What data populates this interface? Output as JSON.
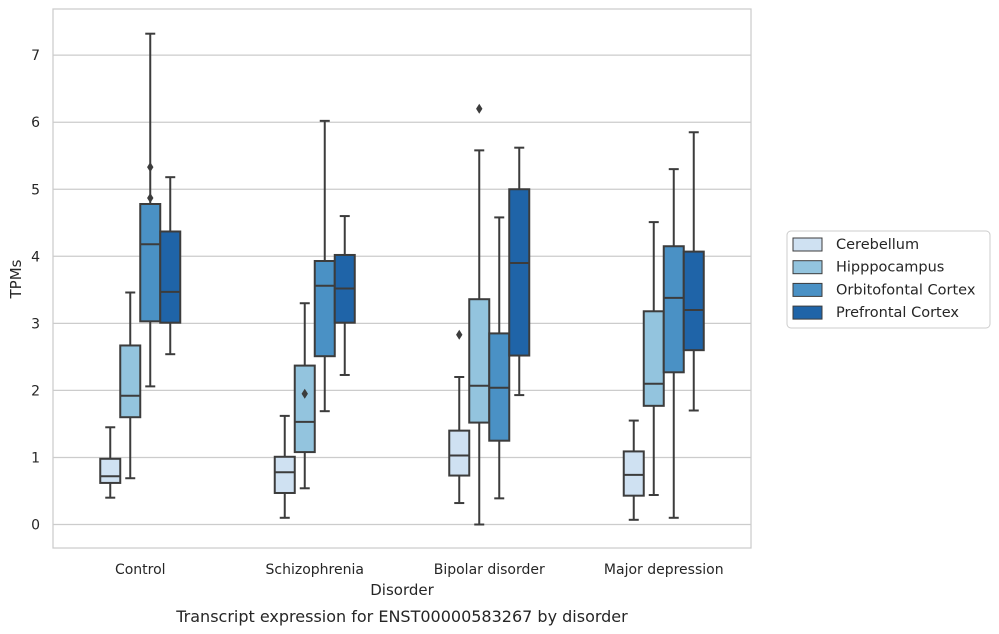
{
  "caption": "Transcript expression for ENST00000583267 by disorder",
  "chart_data": {
    "type": "boxplot",
    "xlabel": "Disorder",
    "ylabel": "TPMs",
    "ylim": [
      -0.35,
      7.7
    ],
    "yticks": [
      0,
      1,
      2,
      3,
      4,
      5,
      6,
      7
    ],
    "grid": "horizontal",
    "legend_position": "right",
    "categories": [
      "Control",
      "Schizophrenia",
      "Bipolar disorder",
      "Major depression"
    ],
    "series": [
      {
        "name": "Cerebellum",
        "color": "#cfe1f2",
        "boxes": [
          {
            "whislo": 0.4,
            "q1": 0.62,
            "med": 0.72,
            "q3": 0.98,
            "whishi": 1.45,
            "fliers": []
          },
          {
            "whislo": 0.1,
            "q1": 0.47,
            "med": 0.78,
            "q3": 1.01,
            "whishi": 1.62,
            "fliers": []
          },
          {
            "whislo": 0.32,
            "q1": 0.73,
            "med": 1.03,
            "q3": 1.4,
            "whishi": 2.2,
            "fliers": [
              2.83
            ]
          },
          {
            "whislo": 0.07,
            "q1": 0.43,
            "med": 0.74,
            "q3": 1.09,
            "whishi": 1.55,
            "fliers": []
          }
        ]
      },
      {
        "name": "Hipppocampus",
        "color": "#93c4de",
        "boxes": [
          {
            "whislo": 0.69,
            "q1": 1.6,
            "med": 1.92,
            "q3": 2.67,
            "whishi": 3.46,
            "fliers": []
          },
          {
            "whislo": 0.54,
            "q1": 1.08,
            "med": 1.53,
            "q3": 2.37,
            "whishi": 3.3,
            "fliers": [
              1.95
            ]
          },
          {
            "whislo": 0.0,
            "q1": 1.52,
            "med": 2.07,
            "q3": 3.36,
            "whishi": 5.58,
            "fliers": [
              6.2
            ]
          },
          {
            "whislo": 0.44,
            "q1": 1.77,
            "med": 2.1,
            "q3": 3.18,
            "whishi": 4.51,
            "fliers": []
          }
        ]
      },
      {
        "name": "Orbitofontal Cortex",
        "color": "#4a91c5",
        "boxes": [
          {
            "whislo": 2.06,
            "q1": 3.03,
            "med": 4.18,
            "q3": 4.78,
            "whishi": 7.32,
            "fliers": [
              4.87,
              5.33
            ]
          },
          {
            "whislo": 1.69,
            "q1": 2.51,
            "med": 3.56,
            "q3": 3.93,
            "whishi": 6.02,
            "fliers": []
          },
          {
            "whislo": 0.39,
            "q1": 1.25,
            "med": 2.04,
            "q3": 2.85,
            "whishi": 4.58,
            "fliers": []
          },
          {
            "whislo": 0.1,
            "q1": 2.27,
            "med": 3.38,
            "q3": 4.15,
            "whishi": 5.3,
            "fliers": []
          }
        ]
      },
      {
        "name": "Prefrontal Cortex",
        "color": "#1f64a8",
        "boxes": [
          {
            "whislo": 2.54,
            "q1": 3.01,
            "med": 3.47,
            "q3": 4.37,
            "whishi": 5.18,
            "fliers": []
          },
          {
            "whislo": 2.23,
            "q1": 3.01,
            "med": 3.52,
            "q3": 4.02,
            "whishi": 4.6,
            "fliers": []
          },
          {
            "whislo": 1.93,
            "q1": 2.52,
            "med": 3.9,
            "q3": 5.0,
            "whishi": 5.62,
            "fliers": []
          },
          {
            "whislo": 1.7,
            "q1": 2.6,
            "med": 3.2,
            "q3": 4.07,
            "whishi": 5.85,
            "fliers": []
          }
        ]
      }
    ]
  }
}
